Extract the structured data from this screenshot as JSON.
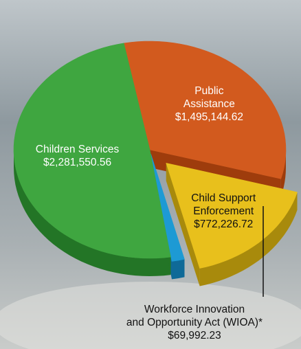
{
  "chart_data": {
    "type": "pie",
    "title": "",
    "slices": [
      {
        "label_lines": [
          "Public",
          "Assistance"
        ],
        "value_text": "$1,495,144.62",
        "value": 1495144.62,
        "color": "#d25a1e",
        "side_color": "#9e3c0c"
      },
      {
        "label_lines": [
          "Child Support",
          "Enforcement"
        ],
        "value_text": "$772,226.72",
        "value": 772226.72,
        "color": "#e8c01c",
        "side_color": "#a88a0c"
      },
      {
        "label_lines": [
          "Workforce Innovation",
          "and Opportunity Act (WIOA)*"
        ],
        "value_text": "$69,992.23",
        "value": 69992.23,
        "color": "#1d9ad4",
        "side_color": "#0f6a98"
      },
      {
        "label_lines": [
          "Children Services"
        ],
        "value_text": "$2,281,550.56",
        "value": 2281550.56,
        "color": "#3fa640",
        "side_color": "#237526"
      }
    ],
    "label_color_inside": "#ffffff",
    "label_color_outside": "#111111",
    "exploded": [
      "Child Support Enforcement"
    ]
  }
}
